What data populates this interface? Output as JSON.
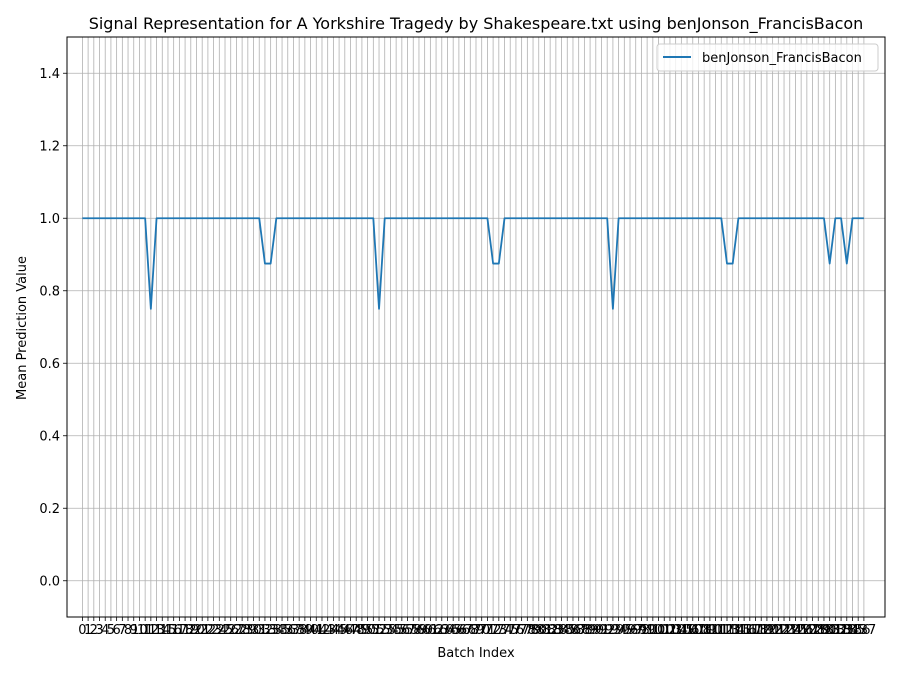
{
  "chart_data": {
    "type": "line",
    "title": "Signal Representation for A Yorkshire Tragedy by Shakespeare.txt using benJonson_FrancisBacon",
    "xlabel": "Batch Index",
    "ylabel": "Mean Prediction Value",
    "xlim": [
      -2.7,
      140.7
    ],
    "ylim": [
      -0.1,
      1.5
    ],
    "yticks": [
      0.0,
      0.2,
      0.4,
      0.6,
      0.8,
      1.0,
      1.2,
      1.4
    ],
    "ytick_labels": [
      "0.0",
      "0.2",
      "0.4",
      "0.6",
      "0.8",
      "1.0",
      "1.2",
      "1.4"
    ],
    "x_categories_count": 138,
    "xtick_labels": [
      "0",
      "1",
      "2",
      "3",
      "4",
      "5",
      "6",
      "7",
      "8",
      "9",
      "10",
      "11",
      "12",
      "13",
      "14",
      "15",
      "16",
      "17",
      "18",
      "19",
      "20",
      "21",
      "22",
      "23",
      "24",
      "25",
      "26",
      "27",
      "28",
      "29",
      "30",
      "31",
      "32",
      "33",
      "34",
      "35",
      "36",
      "37",
      "38",
      "39",
      "40",
      "41",
      "42",
      "43",
      "44",
      "45",
      "46",
      "47",
      "48",
      "49",
      "50",
      "51",
      "52",
      "53",
      "54",
      "55",
      "56",
      "57",
      "58",
      "59",
      "60",
      "61",
      "62",
      "63",
      "64",
      "65",
      "66",
      "67",
      "68",
      "69",
      "70",
      "71",
      "72",
      "73",
      "74",
      "75",
      "76",
      "77",
      "78",
      "79",
      "80",
      "81",
      "82",
      "83",
      "84",
      "85",
      "86",
      "87",
      "88",
      "89",
      "90",
      "91",
      "92",
      "93",
      "94",
      "95",
      "96",
      "97",
      "98",
      "99",
      "100",
      "101",
      "102",
      "103",
      "104",
      "105",
      "106",
      "107",
      "108",
      "109",
      "110",
      "111",
      "112",
      "113",
      "114",
      "115",
      "116",
      "117",
      "118",
      "119",
      "120",
      "121",
      "122",
      "123",
      "124",
      "125",
      "126",
      "127",
      "128",
      "129",
      "130",
      "131",
      "132",
      "133",
      "134",
      "135",
      "136",
      "137"
    ],
    "grid": true,
    "legend_position": "upper right",
    "series": [
      {
        "name": "benJonson_FrancisBacon",
        "color": "#1f77b4",
        "dips": [
          {
            "index": 12,
            "value": 0.75
          },
          {
            "index": 32,
            "value": 0.875
          },
          {
            "index": 33,
            "value": 0.875
          },
          {
            "index": 52,
            "value": 0.75
          },
          {
            "index": 72,
            "value": 0.875
          },
          {
            "index": 73,
            "value": 0.875
          },
          {
            "index": 93,
            "value": 0.75
          },
          {
            "index": 113,
            "value": 0.875
          },
          {
            "index": 114,
            "value": 0.875
          },
          {
            "index": 131,
            "value": 0.875
          },
          {
            "index": 134,
            "value": 0.875
          }
        ],
        "baseline": 1.0
      }
    ]
  }
}
